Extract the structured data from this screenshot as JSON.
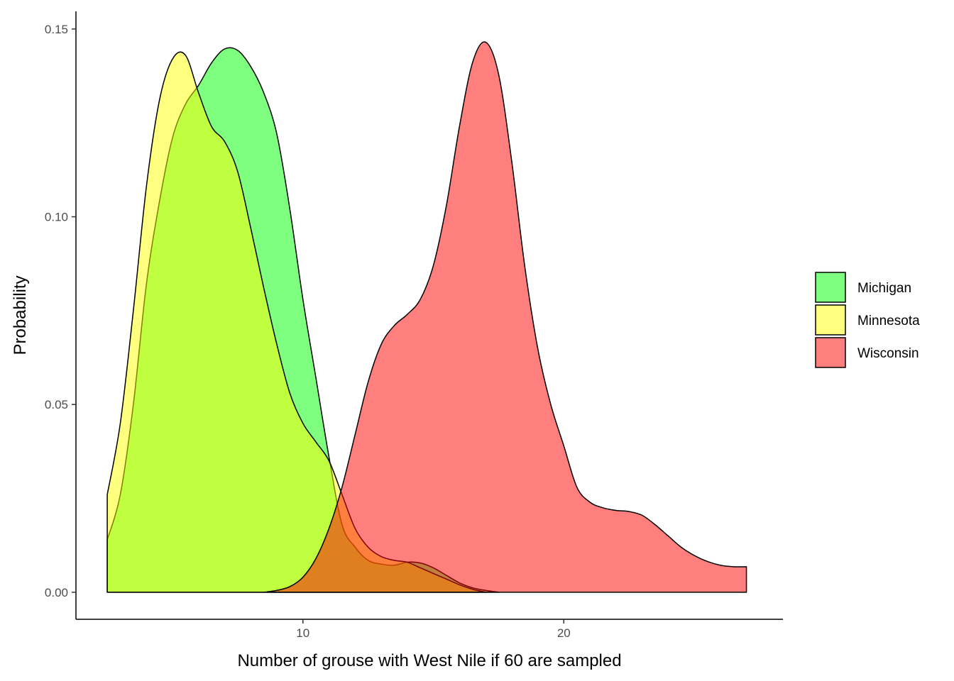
{
  "chart_data": {
    "type": "area",
    "title": "",
    "xlabel": "Number of grouse with West Nile if 60 are sampled",
    "ylabel": "Probability",
    "xlim": [
      1.3,
      28.4
    ],
    "ylim": [
      -0.0072,
      0.1547
    ],
    "x_ticks": [
      10,
      20
    ],
    "x_tick_labels": [
      "10",
      "20"
    ],
    "y_ticks": [
      0,
      0.05,
      0.1,
      0.15
    ],
    "y_tick_labels": [
      "0.00",
      "0.05",
      "0.10",
      "0.15"
    ],
    "grid": false,
    "legend_position": "right",
    "series": [
      {
        "name": "Michigan",
        "color": "#00FF00",
        "x": [
          2.5,
          3.0,
          3.5,
          4.0,
          4.5,
          5.0,
          5.5,
          6.0,
          6.5,
          7.0,
          7.5,
          8.0,
          8.5,
          9.0,
          9.5,
          10.0,
          10.5,
          11.0,
          11.5,
          12.0,
          12.5,
          13.0,
          13.5,
          14.0,
          14.5,
          15.0,
          15.5,
          16.0,
          16.5,
          17.0,
          17.5
        ],
        "y": [
          0.014,
          0.026,
          0.05,
          0.082,
          0.104,
          0.121,
          0.13,
          0.135,
          0.141,
          0.1447,
          0.1443,
          0.14,
          0.133,
          0.122,
          0.102,
          0.078,
          0.057,
          0.036,
          0.018,
          0.012,
          0.0085,
          0.0075,
          0.0072,
          0.008,
          0.0078,
          0.0065,
          0.0045,
          0.0025,
          0.0012,
          0.0005,
          0.0
        ]
      },
      {
        "name": "Minnesota",
        "color": "#FFFF00",
        "x": [
          2.5,
          3.0,
          3.5,
          4.0,
          4.5,
          5.0,
          5.5,
          6.0,
          6.5,
          7.0,
          7.5,
          8.0,
          8.5,
          9.0,
          9.5,
          10.0,
          10.5,
          11.0,
          11.5,
          12.0,
          12.5,
          13.0,
          13.5,
          14.0,
          14.5,
          15.0,
          15.5,
          16.0,
          16.5,
          17.0
        ],
        "y": [
          0.026,
          0.045,
          0.075,
          0.108,
          0.131,
          0.142,
          0.143,
          0.133,
          0.124,
          0.12,
          0.112,
          0.097,
          0.081,
          0.066,
          0.053,
          0.045,
          0.04,
          0.035,
          0.026,
          0.017,
          0.012,
          0.0095,
          0.0085,
          0.008,
          0.0065,
          0.005,
          0.0035,
          0.002,
          0.0008,
          0.0
        ]
      },
      {
        "name": "Wisconsin",
        "color": "#FF0000",
        "x": [
          8.5,
          9.0,
          9.5,
          10.0,
          10.5,
          11.0,
          11.5,
          12.0,
          12.5,
          13.0,
          13.5,
          14.0,
          14.5,
          15.0,
          15.5,
          16.0,
          16.5,
          17.0,
          17.5,
          18.0,
          18.5,
          19.0,
          19.5,
          20.0,
          20.5,
          21.0,
          21.5,
          22.0,
          22.5,
          23.0,
          23.5,
          24.0,
          24.5,
          25.0,
          25.5,
          26.0,
          26.5,
          27.0
        ],
        "y": [
          0.0,
          0.0005,
          0.0015,
          0.004,
          0.009,
          0.017,
          0.028,
          0.042,
          0.056,
          0.066,
          0.071,
          0.074,
          0.078,
          0.087,
          0.103,
          0.124,
          0.141,
          0.1465,
          0.138,
          0.115,
          0.087,
          0.065,
          0.05,
          0.039,
          0.028,
          0.024,
          0.0225,
          0.0218,
          0.0215,
          0.0205,
          0.018,
          0.015,
          0.012,
          0.0098,
          0.0082,
          0.0072,
          0.0068,
          0.0068
        ]
      }
    ]
  }
}
